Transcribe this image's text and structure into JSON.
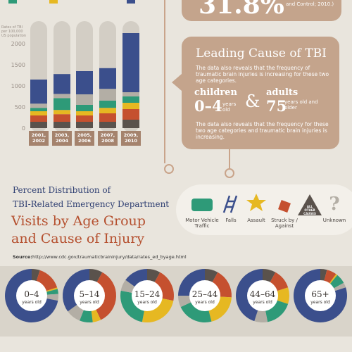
{
  "chart_data": [
    {
      "type": "bar",
      "stacked": true,
      "y_label": "Rates of TBI per 100,000 US population",
      "categories": [
        "2001, 2002",
        "2003, 2004",
        "2005, 2006",
        "2007, 2008",
        "2009, 2010"
      ],
      "series": [
        {
          "name": "ALL OTHER CAUSES",
          "color": "#5a524c",
          "values": [
            150,
            150,
            150,
            150,
            200
          ]
        },
        {
          "name": "Struck by / Against",
          "color": "#c5502f",
          "values": [
            150,
            180,
            150,
            200,
            250
          ]
        },
        {
          "name": "Assault",
          "color": "#e6b822",
          "values": [
            100,
            100,
            100,
            130,
            150
          ]
        },
        {
          "name": "Motor Vehicle Traffic",
          "color": "#2e9a78",
          "values": [
            80,
            280,
            150,
            170,
            150
          ]
        },
        {
          "name": "Unknown",
          "color": "#b3aea5",
          "values": [
            100,
            100,
            250,
            280,
            100
          ]
        },
        {
          "name": "Falls",
          "color": "#3b4f8c",
          "values": [
            570,
            470,
            550,
            490,
            1400
          ]
        }
      ],
      "ylim": [
        0,
        2500
      ],
      "yticks": [
        0,
        500,
        1000,
        1500,
        2000
      ],
      "grid": false
    },
    {
      "type": "donut",
      "title": "0–4",
      "subtitle": "years old",
      "values": [
        5,
        15,
        1,
        3,
        4,
        72
      ]
    },
    {
      "type": "donut",
      "title": "5–14",
      "subtitle": "years old",
      "values": [
        8,
        35,
        5,
        8,
        9,
        35
      ]
    },
    {
      "type": "donut",
      "title": "15–24",
      "subtitle": "years old",
      "values": [
        8,
        20,
        25,
        25,
        7,
        15
      ]
    },
    {
      "type": "donut",
      "title": "25–44",
      "subtitle": "years old",
      "values": [
        8,
        18,
        20,
        22,
        7,
        25
      ]
    },
    {
      "type": "donut",
      "title": "44–64",
      "subtitle": "years old",
      "values": [
        8,
        12,
        10,
        17,
        8,
        45
      ]
    },
    {
      "type": "donut",
      "title": "65+",
      "subtitle": "years old",
      "values": [
        4,
        6,
        1,
        6,
        3,
        80
      ]
    }
  ],
  "text": {
    "top_stat": "31.8%",
    "top_note": "and Control; 2010.)",
    "box_title": "Leading Cause of TBI",
    "box_text1": "The data also reveals that the frequency of traumatic brain injuries is increasing for these two age categories.",
    "children_label": "children",
    "children_age": "0–4",
    "children_unit": "years old",
    "amp": "&",
    "adults_label": "adults",
    "adults_age": "75",
    "adults_unit": "years old and older",
    "box_text2": "The data also reveals that the frequency for these two age categories and traumatic brain injuries is increasing.",
    "heading1": "Percent Distribution of",
    "heading2": "TBI-Related Emergency Department",
    "heading3": "Visits by Age Group",
    "heading4": "and Cause of Injury",
    "source_label": "Source:",
    "source_url": "http://www.cdc.gov/traumaticbraininjury/data/rates_ed_byage.html"
  }
}
